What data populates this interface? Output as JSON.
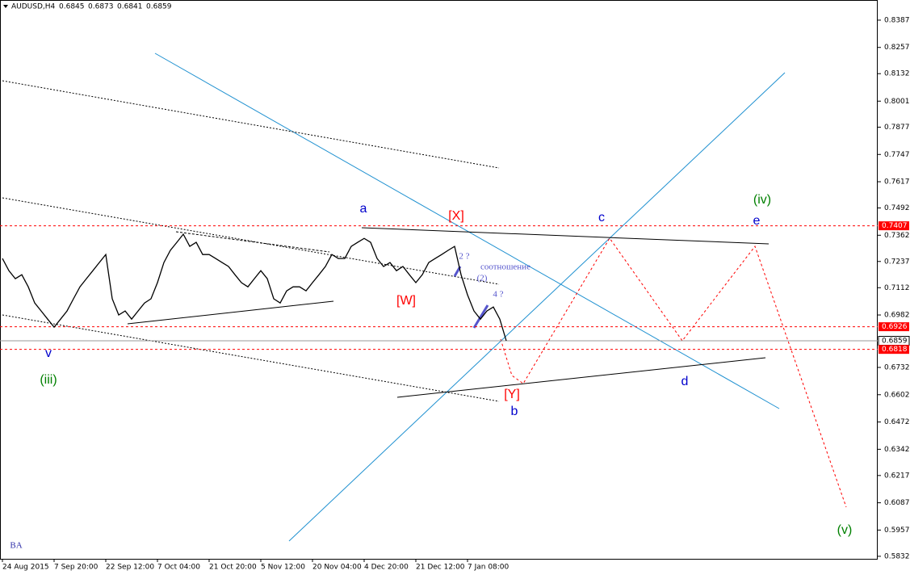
{
  "chart_data": {
    "type": "line",
    "title": "AUDUSD,H4",
    "ohlc": [
      0.6845,
      0.6873,
      0.6841,
      0.6859
    ],
    "categories": [
      "24 Aug 2015",
      null,
      null,
      null,
      null,
      null,
      null,
      null,
      "7 Sep 20:00",
      null,
      null,
      null,
      null,
      null,
      null,
      null,
      "22 Sep 12:00",
      null,
      null,
      null,
      null,
      null,
      null,
      null,
      "7 Oct 04:00",
      null,
      null,
      null,
      null,
      null,
      null,
      null,
      "21 Oct 20:00",
      null,
      null,
      null,
      null,
      null,
      null,
      null,
      "5 Nov 12:00",
      null,
      null,
      null,
      null,
      null,
      null,
      null,
      "20 Nov 04:00",
      null,
      null,
      null,
      null,
      null,
      null,
      null,
      "4 Dec 20:00",
      null,
      null,
      null,
      null,
      null,
      null,
      null,
      "21 Dec 12:00",
      null,
      null,
      null,
      null,
      null,
      null,
      null,
      "7 Jan 08:00",
      null,
      null,
      null,
      null,
      null,
      null
    ],
    "series": [
      {
        "name": "AUDUSD",
        "color": "#000000",
        "values": [
          0.7251,
          0.7193,
          0.7155,
          0.7174,
          0.7116,
          0.7039,
          0.7001,
          0.6962,
          0.6924,
          0.6962,
          0.7001,
          0.7059,
          0.7116,
          0.7155,
          0.7193,
          0.7232,
          0.727,
          0.7059,
          0.6982,
          0.7001,
          0.6962,
          0.7001,
          0.7039,
          0.7059,
          0.7136,
          0.7232,
          0.729,
          0.7328,
          0.7367,
          0.7309,
          0.7328,
          0.727,
          0.727,
          0.7251,
          0.7232,
          0.7213,
          0.7174,
          0.7136,
          0.7116,
          0.7155,
          0.7193,
          0.7155,
          0.7059,
          0.7039,
          0.7097,
          0.7116,
          0.7116,
          0.7097,
          0.7136,
          0.7174,
          0.7213,
          0.727,
          0.7251,
          0.7251,
          0.7309,
          0.7328,
          0.7347,
          0.7328,
          0.7251,
          0.7213,
          0.7232,
          0.7193,
          0.7213,
          0.7174,
          0.7136,
          0.7174,
          0.7232,
          0.7251,
          0.727,
          0.729,
          0.7309,
          0.7174,
          0.7078,
          0.7001,
          0.6962,
          0.7001,
          0.702,
          0.6962,
          0.6859
        ]
      }
    ],
    "ylim": [
      0.582,
      0.8483
    ],
    "yticks": [
      0.8387,
      0.8257,
      0.8132,
      0.8001,
      0.7877,
      0.7747,
      0.7617,
      0.7492,
      0.7362,
      0.7237,
      0.7112,
      0.6982,
      0.6732,
      0.6602,
      0.6472,
      0.6342,
      0.6217,
      0.6087,
      0.5957,
      0.5832
    ],
    "price_lines": [
      {
        "value": 0.7407,
        "color": "#ff0000"
      },
      {
        "value": 0.6926,
        "color": "#ff0000"
      },
      {
        "value": 0.6859,
        "color": "#000000"
      },
      {
        "value": 0.6818,
        "color": "#ff0000"
      }
    ],
    "annotations": [
      {
        "text": "a",
        "color": "#0000cc"
      },
      {
        "text": "[X]",
        "color": "#ff0000"
      },
      {
        "text": "c",
        "color": "#0000cc"
      },
      {
        "text": "(iv)",
        "color": "#008000"
      },
      {
        "text": "e",
        "color": "#0000cc"
      },
      {
        "text": "v",
        "color": "#0000cc"
      },
      {
        "text": "(iii)",
        "color": "#008000"
      },
      {
        "text": "[W]",
        "color": "#ff0000"
      },
      {
        "text": "[Y]",
        "color": "#ff0000"
      },
      {
        "text": "b",
        "color": "#0000cc"
      },
      {
        "text": "d",
        "color": "#0000cc"
      },
      {
        "text": "(v)",
        "color": "#008000"
      },
      {
        "text": "2 ?",
        "color": "#5555cc"
      },
      {
        "text": "соотношение",
        "color": "#5555cc"
      },
      {
        "text": "(2)",
        "color": "#5555cc"
      },
      {
        "text": "4 ?",
        "color": "#5555cc"
      },
      {
        "text": "BA",
        "color": "#3333aa"
      }
    ]
  }
}
